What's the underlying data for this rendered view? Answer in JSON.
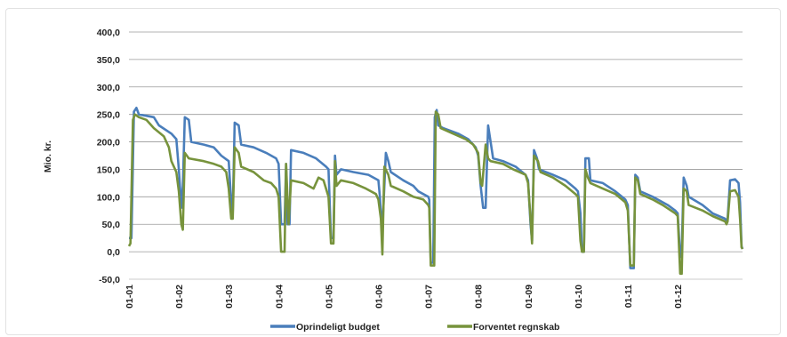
{
  "chart_data": {
    "type": "line",
    "title": "",
    "xlabel": "",
    "ylabel": "Mio. kr.",
    "ylim": [
      -50,
      400
    ],
    "yticks": [
      "400,0",
      "350,0",
      "300,0",
      "250,0",
      "200,0",
      "150,0",
      "100,0",
      "50,0",
      "0,0",
      "-50,0"
    ],
    "ytick_values": [
      400,
      350,
      300,
      250,
      200,
      150,
      100,
      50,
      0,
      -50
    ],
    "xticks": [
      "01-01",
      "01-02",
      "01-03",
      "01-04",
      "01-05",
      "01-06",
      "01-07",
      "01-08",
      "01-09",
      "01-10",
      "01-11",
      "01-12"
    ],
    "xlim": [
      0,
      12
    ],
    "grid": "horizontal",
    "legend": "bottom",
    "colors": {
      "budget": "#4a7ebb",
      "forventet": "#77933c"
    },
    "series": [
      {
        "name": "Oprindeligt budget",
        "points": [
          [
            0.0,
            25
          ],
          [
            0.05,
            25
          ],
          [
            0.1,
            255
          ],
          [
            0.15,
            262
          ],
          [
            0.2,
            250
          ],
          [
            0.5,
            245
          ],
          [
            0.6,
            230
          ],
          [
            0.85,
            215
          ],
          [
            0.95,
            205
          ],
          [
            1.0,
            150
          ],
          [
            1.05,
            80
          ],
          [
            1.08,
            120
          ],
          [
            1.12,
            245
          ],
          [
            1.2,
            240
          ],
          [
            1.25,
            200
          ],
          [
            1.5,
            195
          ],
          [
            1.7,
            190
          ],
          [
            1.85,
            175
          ],
          [
            2.0,
            165
          ],
          [
            2.05,
            90
          ],
          [
            2.08,
            70
          ],
          [
            2.12,
            235
          ],
          [
            2.2,
            230
          ],
          [
            2.25,
            195
          ],
          [
            2.5,
            190
          ],
          [
            2.75,
            180
          ],
          [
            2.95,
            170
          ],
          [
            3.0,
            160
          ],
          [
            3.05,
            50
          ],
          [
            3.12,
            50
          ],
          [
            3.15,
            160
          ],
          [
            3.18,
            50
          ],
          [
            3.22,
            50
          ],
          [
            3.25,
            185
          ],
          [
            3.5,
            180
          ],
          [
            3.75,
            170
          ],
          [
            3.95,
            155
          ],
          [
            4.0,
            150
          ],
          [
            4.05,
            25
          ],
          [
            4.1,
            25
          ],
          [
            4.13,
            175
          ],
          [
            4.16,
            140
          ],
          [
            4.25,
            150
          ],
          [
            4.5,
            145
          ],
          [
            4.8,
            140
          ],
          [
            5.0,
            130
          ],
          [
            5.03,
            100
          ],
          [
            5.07,
            40
          ],
          [
            5.1,
            80
          ],
          [
            5.15,
            180
          ],
          [
            5.2,
            165
          ],
          [
            5.25,
            145
          ],
          [
            5.5,
            130
          ],
          [
            5.7,
            120
          ],
          [
            5.8,
            110
          ],
          [
            6.0,
            100
          ],
          [
            6.02,
            95
          ],
          [
            6.05,
            -20
          ],
          [
            6.1,
            -20
          ],
          [
            6.13,
            245
          ],
          [
            6.17,
            258
          ],
          [
            6.2,
            230
          ],
          [
            6.3,
            225
          ],
          [
            6.6,
            215
          ],
          [
            6.8,
            205
          ],
          [
            6.95,
            190
          ],
          [
            7.0,
            175
          ],
          [
            7.05,
            120
          ],
          [
            7.1,
            80
          ],
          [
            7.15,
            80
          ],
          [
            7.2,
            230
          ],
          [
            7.25,
            200
          ],
          [
            7.3,
            170
          ],
          [
            7.5,
            165
          ],
          [
            7.75,
            155
          ],
          [
            7.95,
            140
          ],
          [
            8.0,
            130
          ],
          [
            8.05,
            50
          ],
          [
            8.08,
            20
          ],
          [
            8.12,
            185
          ],
          [
            8.18,
            170
          ],
          [
            8.22,
            150
          ],
          [
            8.5,
            140
          ],
          [
            8.75,
            130
          ],
          [
            8.95,
            115
          ],
          [
            9.0,
            110
          ],
          [
            9.05,
            70
          ],
          [
            9.08,
            0
          ],
          [
            9.12,
            0
          ],
          [
            9.15,
            170
          ],
          [
            9.22,
            170
          ],
          [
            9.25,
            130
          ],
          [
            9.5,
            125
          ],
          [
            9.75,
            110
          ],
          [
            9.95,
            95
          ],
          [
            10.0,
            85
          ],
          [
            10.05,
            -30
          ],
          [
            10.12,
            -30
          ],
          [
            10.15,
            140
          ],
          [
            10.2,
            135
          ],
          [
            10.25,
            110
          ],
          [
            10.5,
            100
          ],
          [
            10.8,
            85
          ],
          [
            10.95,
            75
          ],
          [
            11.0,
            70
          ],
          [
            11.05,
            -10
          ],
          [
            11.08,
            0
          ],
          [
            11.12,
            135
          ],
          [
            11.18,
            120
          ],
          [
            11.22,
            100
          ],
          [
            11.5,
            85
          ],
          [
            11.7,
            70
          ],
          [
            11.95,
            60
          ],
          [
            11.98,
            55
          ],
          [
            12.0,
            60
          ],
          [
            12.05,
            130
          ],
          [
            12.15,
            132
          ],
          [
            12.22,
            125
          ],
          [
            12.25,
            90
          ],
          [
            12.28,
            10
          ],
          [
            12.3,
            5
          ]
        ]
      },
      {
        "name": "Forventet regnskab",
        "points": [
          [
            0.0,
            10
          ],
          [
            0.03,
            15
          ],
          [
            0.08,
            240
          ],
          [
            0.12,
            250
          ],
          [
            0.2,
            245
          ],
          [
            0.35,
            240
          ],
          [
            0.5,
            225
          ],
          [
            0.7,
            210
          ],
          [
            0.8,
            190
          ],
          [
            0.85,
            165
          ],
          [
            0.95,
            145
          ],
          [
            1.0,
            110
          ],
          [
            1.05,
            50
          ],
          [
            1.08,
            40
          ],
          [
            1.12,
            180
          ],
          [
            1.2,
            170
          ],
          [
            1.5,
            165
          ],
          [
            1.7,
            160
          ],
          [
            1.85,
            155
          ],
          [
            1.95,
            145
          ],
          [
            2.0,
            115
          ],
          [
            2.05,
            60
          ],
          [
            2.08,
            60
          ],
          [
            2.12,
            190
          ],
          [
            2.2,
            180
          ],
          [
            2.25,
            155
          ],
          [
            2.5,
            145
          ],
          [
            2.7,
            130
          ],
          [
            2.85,
            125
          ],
          [
            2.95,
            115
          ],
          [
            3.0,
            100
          ],
          [
            3.05,
            0
          ],
          [
            3.12,
            0
          ],
          [
            3.15,
            160
          ],
          [
            3.2,
            50
          ],
          [
            3.25,
            130
          ],
          [
            3.5,
            125
          ],
          [
            3.7,
            115
          ],
          [
            3.8,
            135
          ],
          [
            3.9,
            130
          ],
          [
            4.0,
            100
          ],
          [
            4.05,
            15
          ],
          [
            4.1,
            15
          ],
          [
            4.13,
            165
          ],
          [
            4.16,
            120
          ],
          [
            4.25,
            130
          ],
          [
            4.5,
            125
          ],
          [
            4.75,
            115
          ],
          [
            4.95,
            105
          ],
          [
            5.0,
            95
          ],
          [
            5.05,
            60
          ],
          [
            5.08,
            -5
          ],
          [
            5.12,
            155
          ],
          [
            5.2,
            140
          ],
          [
            5.25,
            120
          ],
          [
            5.5,
            110
          ],
          [
            5.7,
            100
          ],
          [
            5.9,
            95
          ],
          [
            6.0,
            85
          ],
          [
            6.02,
            80
          ],
          [
            6.05,
            -25
          ],
          [
            6.12,
            -25
          ],
          [
            6.15,
            255
          ],
          [
            6.2,
            250
          ],
          [
            6.25,
            225
          ],
          [
            6.5,
            215
          ],
          [
            6.75,
            205
          ],
          [
            6.9,
            195
          ],
          [
            7.0,
            180
          ],
          [
            7.05,
            125
          ],
          [
            7.08,
            120
          ],
          [
            7.15,
            195
          ],
          [
            7.2,
            170
          ],
          [
            7.25,
            165
          ],
          [
            7.5,
            160
          ],
          [
            7.7,
            150
          ],
          [
            7.95,
            140
          ],
          [
            8.0,
            125
          ],
          [
            8.05,
            60
          ],
          [
            8.08,
            15
          ],
          [
            8.12,
            175
          ],
          [
            8.2,
            165
          ],
          [
            8.25,
            145
          ],
          [
            8.5,
            135
          ],
          [
            8.75,
            120
          ],
          [
            8.95,
            105
          ],
          [
            9.0,
            100
          ],
          [
            9.05,
            20
          ],
          [
            9.08,
            0
          ],
          [
            9.12,
            0
          ],
          [
            9.15,
            150
          ],
          [
            9.2,
            135
          ],
          [
            9.25,
            125
          ],
          [
            9.5,
            115
          ],
          [
            9.75,
            105
          ],
          [
            9.95,
            90
          ],
          [
            10.0,
            75
          ],
          [
            10.05,
            -25
          ],
          [
            10.12,
            -25
          ],
          [
            10.15,
            135
          ],
          [
            10.2,
            130
          ],
          [
            10.25,
            105
          ],
          [
            10.5,
            95
          ],
          [
            10.7,
            85
          ],
          [
            10.95,
            70
          ],
          [
            11.0,
            65
          ],
          [
            11.05,
            -40
          ],
          [
            11.08,
            -40
          ],
          [
            11.12,
            115
          ],
          [
            11.18,
            110
          ],
          [
            11.22,
            85
          ],
          [
            11.5,
            75
          ],
          [
            11.7,
            65
          ],
          [
            11.95,
            55
          ],
          [
            11.98,
            50
          ],
          [
            12.0,
            55
          ],
          [
            12.05,
            110
          ],
          [
            12.15,
            112
          ],
          [
            12.22,
            100
          ],
          [
            12.25,
            60
          ],
          [
            12.28,
            8
          ],
          [
            12.3,
            5
          ]
        ]
      }
    ]
  }
}
